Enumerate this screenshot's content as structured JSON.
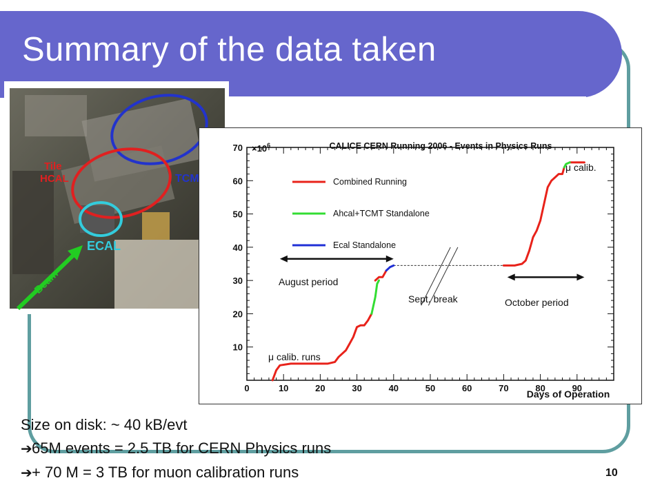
{
  "slide": {
    "title": "Summary of the data taken",
    "page_number": "10",
    "colors": {
      "title_bar": "#6666cc",
      "frame": "#5f9ea0"
    }
  },
  "photo": {
    "labels": {
      "tile_hcal": "Tile\nHCAL",
      "tcmt": "TCMT",
      "ecal": "ECAL",
      "beam": "Beam"
    },
    "colors": {
      "hcal_ring": "#e02020",
      "tcmt_ring": "#2233cc",
      "ecal_ring": "#33ccdd",
      "beam_arrow": "#22cc22"
    }
  },
  "chart_data": {
    "type": "line",
    "title": "CALICE CERN Running 2006 - Events in Physics Runs",
    "xlabel": "Days of Operation",
    "ylabel": "",
    "y_multiplier": "×10",
    "y_multiplier_exp": "6",
    "xlim": [
      0,
      100
    ],
    "ylim": [
      0,
      70
    ],
    "x_ticks": [
      0,
      10,
      20,
      30,
      40,
      50,
      60,
      70,
      80,
      90
    ],
    "y_ticks": [
      10,
      20,
      30,
      40,
      50,
      60,
      70
    ],
    "legend": {
      "placement": "top-left"
    },
    "series": [
      {
        "name": "Combined Running",
        "color": "#e8221a",
        "segments": [
          [
            [
              7,
              0
            ],
            [
              8,
              3
            ],
            [
              9,
              4.5
            ],
            [
              12,
              5
            ],
            [
              16,
              5
            ],
            [
              22,
              5
            ],
            [
              24,
              5.5
            ],
            [
              25,
              7
            ],
            [
              27,
              9
            ],
            [
              28,
              11
            ],
            [
              29,
              13
            ],
            [
              30,
              16
            ],
            [
              31,
              16.5
            ],
            [
              32,
              16.5
            ],
            [
              33,
              18
            ],
            [
              34,
              20
            ]
          ],
          [
            [
              35,
              30
            ],
            [
              36,
              31
            ],
            [
              37,
              31
            ],
            [
              38,
              33
            ]
          ],
          [
            [
              70,
              34.5
            ],
            [
              73,
              34.5
            ],
            [
              75,
              35
            ],
            [
              76,
              36
            ],
            [
              77,
              39
            ],
            [
              78,
              43
            ],
            [
              79,
              45
            ],
            [
              80,
              48
            ],
            [
              81,
              53
            ],
            [
              82,
              58
            ],
            [
              83,
              60
            ],
            [
              84,
              61
            ],
            [
              85,
              62
            ],
            [
              86,
              62
            ],
            [
              86.5,
              64
            ]
          ],
          [
            [
              88,
              65.5
            ],
            [
              92,
              65.5
            ]
          ]
        ]
      },
      {
        "name": "Ahcal+TCMT Standalone",
        "color": "#33dd33",
        "segments": [
          [
            [
              34,
              20
            ],
            [
              35,
              25
            ],
            [
              35.5,
              29
            ],
            [
              36,
              30
            ]
          ],
          [
            [
              86.5,
              64
            ],
            [
              87,
              65
            ],
            [
              88,
              65.5
            ]
          ]
        ]
      },
      {
        "name": "Ecal Standalone",
        "color": "#1f2fd6",
        "segments": [
          [
            [
              38,
              33
            ],
            [
              39,
              34
            ],
            [
              40,
              34.5
            ]
          ]
        ]
      }
    ],
    "annotations": [
      {
        "id": "august",
        "text": "August period",
        "x_range": [
          9,
          40
        ],
        "y": 36.5
      },
      {
        "id": "sept",
        "text": "Sept. break"
      },
      {
        "id": "october",
        "text": "October period",
        "x_range": [
          71,
          92
        ],
        "y": 31
      },
      {
        "id": "mu_calib",
        "text": "μ calib."
      },
      {
        "id": "mu_calib_runs",
        "text": "μ calib. runs"
      }
    ],
    "dashed_gap": {
      "x_range": [
        40,
        70
      ],
      "y": 34.5
    }
  },
  "notes": {
    "line1": "Size on disk: ~ 40 kB/evt",
    "line2": "65M events = 2.5 TB for CERN Physics runs",
    "line3": "+ 70 M = 3 TB for muon calibration runs",
    "arrow_icon": "right-arrow-icon"
  }
}
